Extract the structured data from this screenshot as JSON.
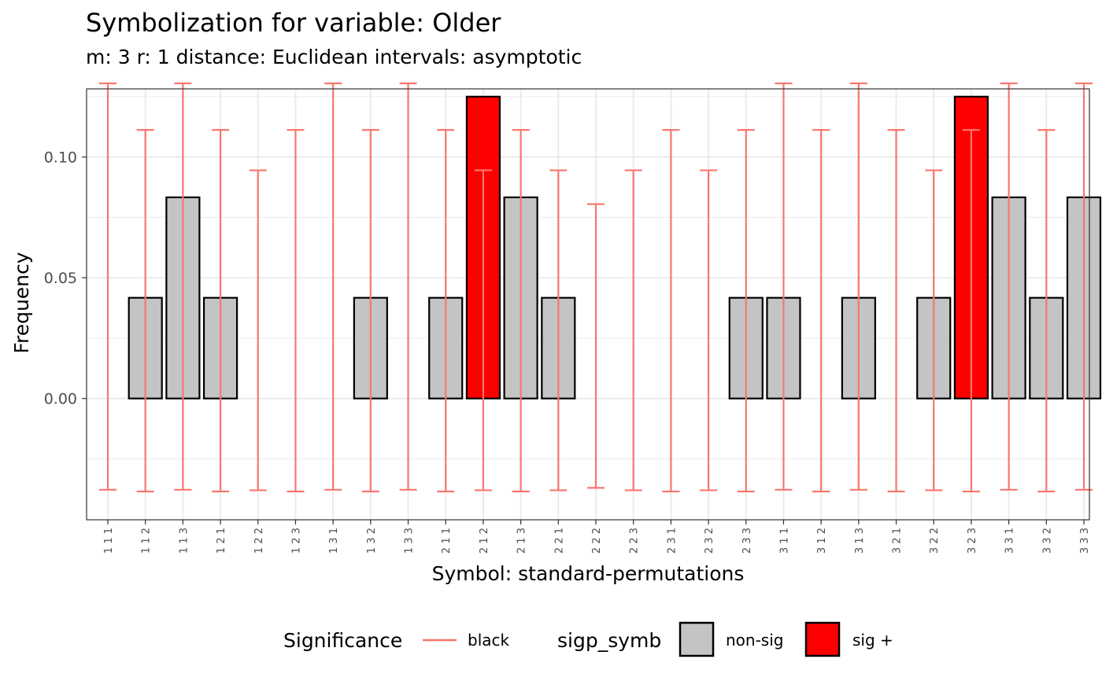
{
  "chart_data": {
    "type": "bar",
    "title": "Symbolization for variable: Older",
    "subtitle": "m: 3  r:  1  distance:  Euclidean  intervals:  asymptotic",
    "xlabel": "Symbol: standard-permutations",
    "ylabel": "Frequency",
    "ylim": [
      -0.046,
      0.1305
    ],
    "yticks": [
      0.0,
      0.05,
      0.1
    ],
    "ytick_labels": [
      "0.00",
      "0.05",
      "0.10"
    ],
    "grid": true,
    "categories": [
      "1 1 1",
      "1 1 2",
      "1 1 3",
      "1 2 1",
      "1 2 2",
      "1 2 3",
      "1 3 1",
      "1 3 2",
      "1 3 3",
      "2 1 1",
      "2 1 2",
      "2 1 3",
      "2 2 1",
      "2 2 2",
      "2 2 3",
      "2 3 1",
      "2 3 2",
      "2 3 3",
      "3 1 1",
      "3 1 2",
      "3 1 3",
      "3 2 1",
      "3 2 2",
      "3 2 3",
      "3 3 1",
      "3 3 2",
      "3 3 3"
    ],
    "values": [
      0,
      0.0417,
      0.0833,
      0.0417,
      0,
      0,
      0,
      0.0417,
      0,
      0.0417,
      0.125,
      0.0833,
      0.0417,
      0,
      0,
      0,
      0,
      0.0417,
      0.0417,
      0,
      0.0417,
      0,
      0.0417,
      0.125,
      0.0833,
      0.0417,
      0.0833
    ],
    "significance": [
      "non-sig",
      "non-sig",
      "non-sig",
      "non-sig",
      "non-sig",
      "non-sig",
      "non-sig",
      "non-sig",
      "non-sig",
      "non-sig",
      "sig +",
      "non-sig",
      "non-sig",
      "non-sig",
      "non-sig",
      "non-sig",
      "non-sig",
      "non-sig",
      "non-sig",
      "non-sig",
      "non-sig",
      "non-sig",
      "non-sig",
      "sig +",
      "non-sig",
      "non-sig",
      "non-sig"
    ],
    "interval_upper": [
      0.1305,
      0.1112,
      0.1305,
      0.1112,
      0.0945,
      0.1112,
      0.1305,
      0.1112,
      0.1305,
      0.1112,
      0.0945,
      0.1112,
      0.0945,
      0.0805,
      0.0945,
      0.1112,
      0.0945,
      0.1112,
      0.1305,
      0.1112,
      0.1305,
      0.1112,
      0.0945,
      0.1112,
      0.1305,
      0.1112,
      0.1305
    ],
    "interval_lower": [
      -0.0378,
      -0.0385,
      -0.0378,
      -0.0385,
      -0.038,
      -0.0385,
      -0.0378,
      -0.0385,
      -0.0378,
      -0.0385,
      -0.038,
      -0.0385,
      -0.038,
      -0.037,
      -0.038,
      -0.0385,
      -0.038,
      -0.0385,
      -0.0378,
      -0.0385,
      -0.0378,
      -0.0385,
      -0.038,
      -0.0385,
      -0.0378,
      -0.0385,
      -0.0378
    ],
    "legend": {
      "placement": "bottom",
      "line_title": "Significance",
      "line_label": "black",
      "fill_title": "sigp_symb",
      "fill_items": [
        {
          "label": "non-sig",
          "color": "#c4c4c4"
        },
        {
          "label": "sig +",
          "color": "#ff0000"
        }
      ]
    },
    "colors": {
      "interval": "#f8766d",
      "non_sig": "#c4c4c4",
      "sig_plus": "#ff0000",
      "grid": "#ebebeb",
      "panel_border": "#333333"
    }
  }
}
